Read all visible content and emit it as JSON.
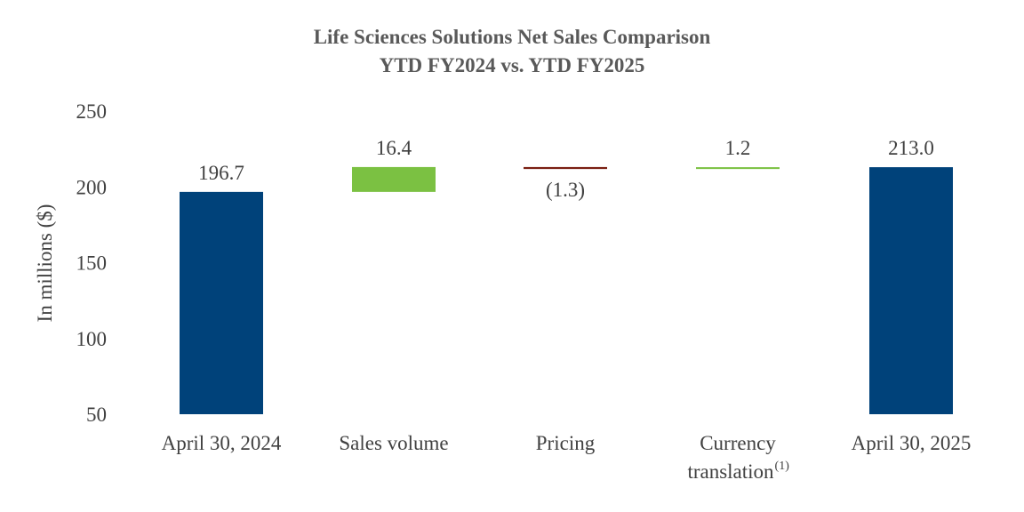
{
  "chart_data": {
    "type": "bar",
    "subtype": "waterfall",
    "title": "Life Sciences Solutions Net Sales Comparison",
    "subtitle": "YTD FY2024 vs. YTD FY2025",
    "ylabel": "In millions ($)",
    "xlabel": "",
    "ylim": [
      50,
      250
    ],
    "yticks": [
      50,
      100,
      150,
      200,
      250
    ],
    "grid": false,
    "categories": [
      {
        "label": "April 30, 2024",
        "label2": ""
      },
      {
        "label": "Sales volume",
        "label2": ""
      },
      {
        "label": "Pricing",
        "label2": ""
      },
      {
        "label": "Currency",
        "label2": "translation",
        "sup": "(1)"
      },
      {
        "label": "April 30, 2025",
        "label2": ""
      }
    ],
    "bars": [
      {
        "kind": "total",
        "base": 50,
        "top": 196.7,
        "label": "196.7",
        "color": "#00427a"
      },
      {
        "kind": "increase",
        "base": 196.7,
        "top": 213.1,
        "label": "16.4",
        "color": "#7bc142"
      },
      {
        "kind": "decrease",
        "base": 211.8,
        "top": 213.1,
        "label": "(1.3)",
        "color": "#7a1f12"
      },
      {
        "kind": "increase",
        "base": 211.8,
        "top": 213.0,
        "label": "1.2",
        "color": "#7bc142"
      },
      {
        "kind": "total",
        "base": 50,
        "top": 213.0,
        "label": "213.0",
        "color": "#00427a"
      }
    ]
  }
}
